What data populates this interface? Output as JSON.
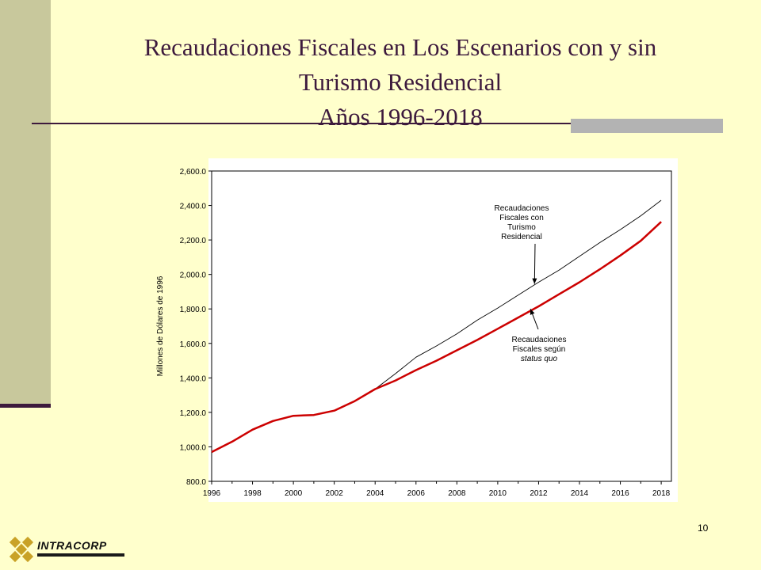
{
  "slide": {
    "title_lines": [
      "Recaudaciones Fiscales en Los Escenarios con y sin",
      "Turismo Residencial",
      "Años 1996-2018"
    ],
    "number": "10",
    "logo_text": "INTRACORP"
  },
  "colors": {
    "background": "#ffffcc",
    "title": "#3d1a3d",
    "series_con": "#000000",
    "series_status_quo": "#cc0000"
  },
  "chart_data": {
    "type": "line",
    "title": "",
    "xlabel": "",
    "ylabel": "Millones de Dólares de 1996",
    "x_ticks": [
      "1996",
      "1998",
      "2000",
      "2002",
      "2004",
      "2006",
      "2008",
      "2010",
      "2012",
      "2014",
      "2016",
      "2018"
    ],
    "y_ticks": [
      "800.0",
      "1,000.0",
      "1,200.0",
      "1,400.0",
      "1,600.0",
      "1,800.0",
      "2,000.0",
      "2,200.0",
      "2,400.0",
      "2,600.0"
    ],
    "xlim": [
      1996,
      2018.5
    ],
    "ylim": [
      800,
      2600
    ],
    "grid": false,
    "x": [
      1996,
      1997,
      1998,
      1999,
      2000,
      2001,
      2002,
      2003,
      2004,
      2005,
      2006,
      2007,
      2008,
      2009,
      2010,
      2011,
      2012,
      2013,
      2014,
      2015,
      2016,
      2017,
      2018
    ],
    "series": [
      {
        "key": "con",
        "values": [
          970,
          1030,
          1100,
          1150,
          1180,
          1185,
          1210,
          1265,
          1335,
          1425,
          1520,
          1585,
          1655,
          1735,
          1805,
          1880,
          1955,
          2025,
          2105,
          2185,
          2260,
          2340,
          2430
        ]
      },
      {
        "key": "status_quo",
        "values": [
          970,
          1030,
          1100,
          1150,
          1180,
          1185,
          1210,
          1265,
          1335,
          1385,
          1445,
          1500,
          1560,
          1620,
          1685,
          1750,
          1815,
          1885,
          1955,
          2030,
          2110,
          2195,
          2305
        ]
      }
    ],
    "annotations": [
      {
        "key": "con",
        "lines": [
          "Recaudaciones",
          "Fiscales con",
          "Turismo",
          "Residencial"
        ],
        "points_to": {
          "x": 2011.8,
          "y": 1945
        }
      },
      {
        "key": "status_quo",
        "lines": [
          "Recaudaciones",
          "Fiscales según",
          "status quo"
        ],
        "points_to": {
          "x": 2011.6,
          "y": 1800
        }
      }
    ]
  }
}
